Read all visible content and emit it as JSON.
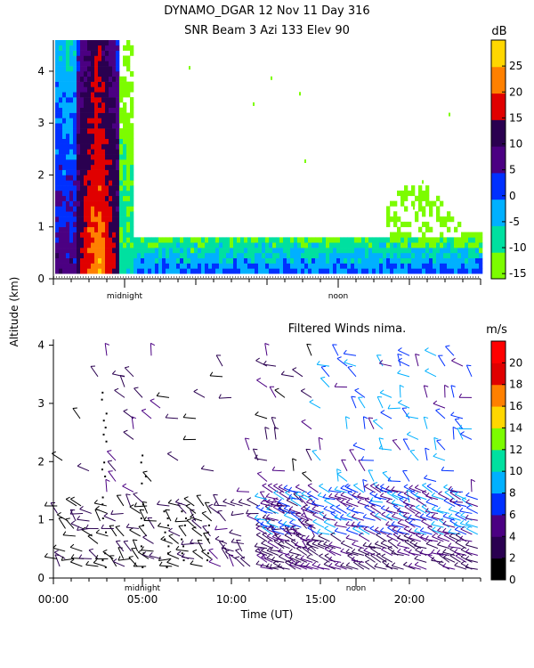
{
  "title_line1": "DYNAMO_DGAR  12 Nov 11 Day 316",
  "title_line2": "SNR Beam 3 Azi 133 Elev 90",
  "ylabel": "Altitude (km)",
  "xlabel": "Time (UT)",
  "chart_data": [
    {
      "type": "heatmap",
      "title": "SNR Beam 3 Azi 133 Elev 90",
      "xlabel": "",
      "ylabel": "Altitude (km)",
      "xlim": [
        0,
        24
      ],
      "ylim": [
        0,
        4.6
      ],
      "yticks": [
        0,
        1,
        2,
        3,
        4
      ],
      "markers": [
        {
          "label": "midnight",
          "x": 4.0
        },
        {
          "label": "noon",
          "x": 16.0
        }
      ],
      "colorbar": {
        "unit": "dB",
        "range": [
          -16,
          30
        ],
        "ticks": [
          -15,
          -10,
          -5,
          0,
          5,
          10,
          15,
          20,
          25
        ],
        "colors": [
          "#7cfc00",
          "#00e0a0",
          "#00b0ff",
          "#0030ff",
          "#4b0082",
          "#2a0050",
          "#e00000",
          "#ff8000",
          "#ffd700"
        ]
      },
      "regions": [
        {
          "x": [
            0.1,
            4.4
          ],
          "y": [
            0.1,
            4.6
          ],
          "description": "strong echo"
        },
        {
          "x": [
            4.4,
            24
          ],
          "y": [
            0.1,
            0.7
          ],
          "description": "boundary layer"
        },
        {
          "x": [
            18.5,
            24
          ],
          "y": [
            0.3,
            2.0
          ],
          "description": "afternoon layer"
        }
      ]
    },
    {
      "type": "scatter",
      "title": "Filtered Winds nima.",
      "xlabel": "Time (UT)",
      "ylabel": "Altitude (km)",
      "xlim": [
        0,
        24
      ],
      "ylim": [
        0,
        4.1
      ],
      "xticks": [
        "00:00",
        "05:00",
        "10:00",
        "15:00",
        "20:00"
      ],
      "yticks": [
        0,
        1,
        2,
        3,
        4
      ],
      "markers": [
        {
          "label": "midnight",
          "x": 5.0
        },
        {
          "label": "noon",
          "x": 17.0
        }
      ],
      "colorbar": {
        "unit": "m/s",
        "range": [
          0,
          22
        ],
        "ticks": [
          0,
          2,
          4,
          6,
          8,
          10,
          12,
          14,
          16,
          18,
          20
        ],
        "colors": [
          "#000000",
          "#2a0050",
          "#4b0082",
          "#0030ff",
          "#00b0ff",
          "#00e0a0",
          "#7cfc00",
          "#ffd700",
          "#ff8000",
          "#e00000",
          "#ff0000"
        ]
      },
      "description": "wind barbs; low speeds below 1 km, 6-10 m/s aloft after 15:00"
    }
  ]
}
